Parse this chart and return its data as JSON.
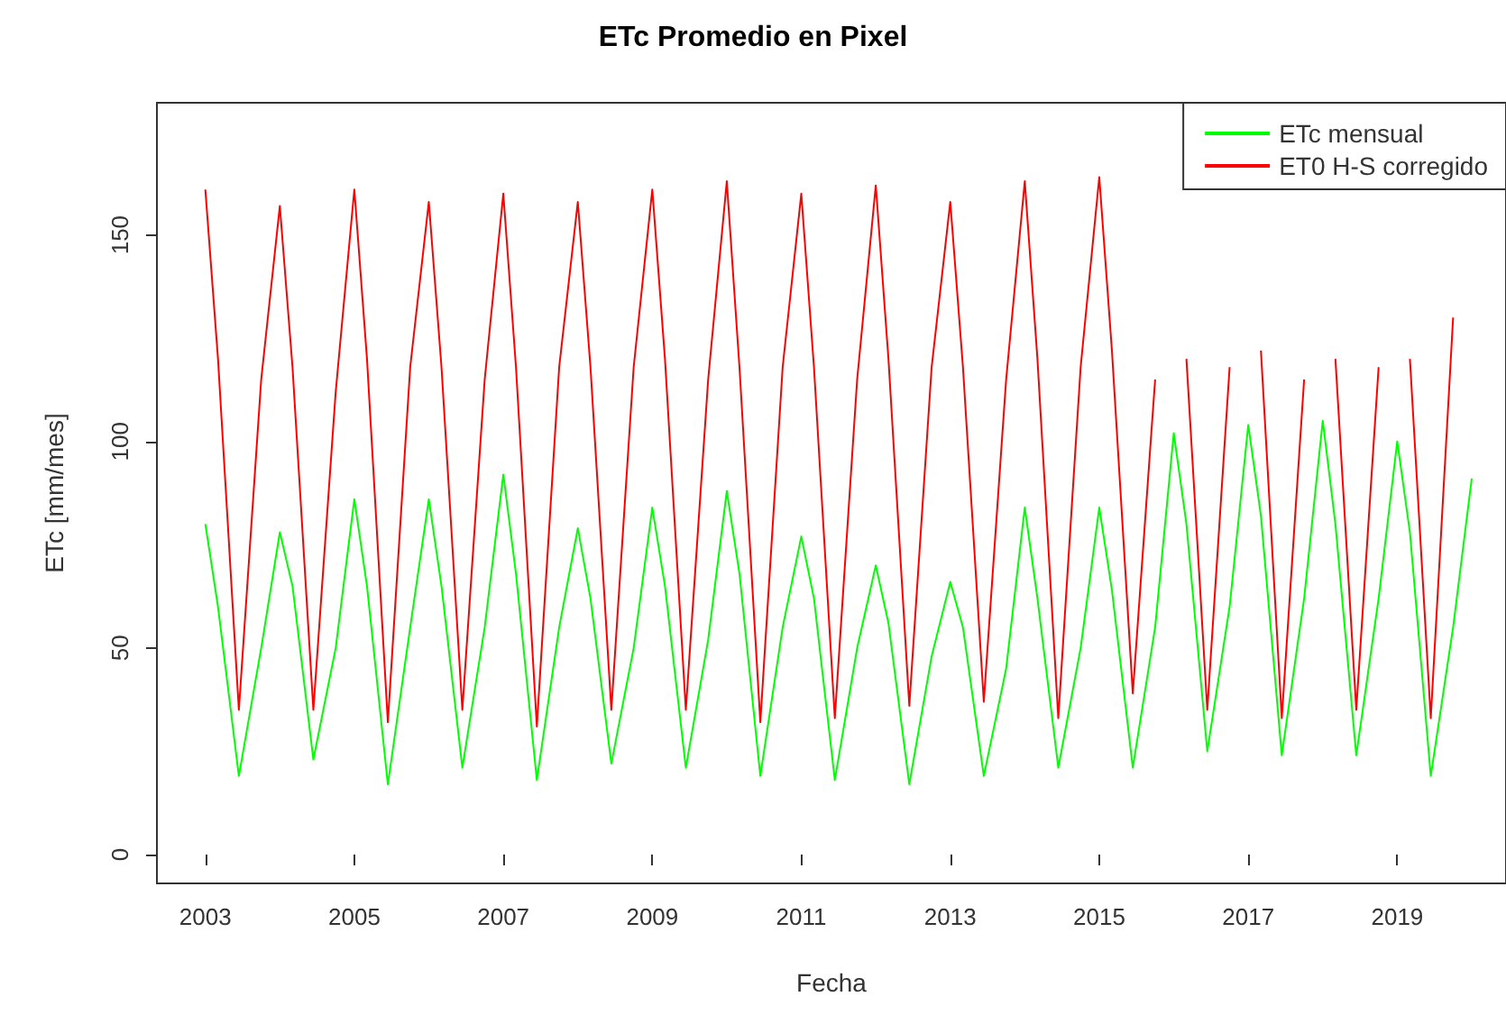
{
  "chart_data": {
    "type": "line",
    "title": "ETc Promedio en Pixel",
    "xlabel": "Fecha",
    "ylabel": "ETc [mm/mes]",
    "x": [
      2003,
      2003.17,
      2003.45,
      2003.75,
      2004,
      2004.17,
      2004.45,
      2004.75,
      2005,
      2005.17,
      2005.45,
      2005.75,
      2006,
      2006.17,
      2006.45,
      2006.75,
      2007,
      2007.17,
      2007.45,
      2007.75,
      2008,
      2008.17,
      2008.45,
      2008.75,
      2009,
      2009.17,
      2009.45,
      2009.75,
      2010,
      2010.17,
      2010.45,
      2010.75,
      2011,
      2011.17,
      2011.45,
      2011.75,
      2012,
      2012.17,
      2012.45,
      2012.75,
      2013,
      2013.17,
      2013.45,
      2013.75,
      2014,
      2014.17,
      2014.45,
      2014.75,
      2015,
      2015.17,
      2015.45,
      2015.75,
      2016,
      2016.17,
      2016.45,
      2016.75,
      2017,
      2017.17,
      2017.45,
      2017.75,
      2018,
      2018.17,
      2018.45,
      2018.75,
      2019,
      2019.17,
      2019.45,
      2019.75,
      2020
    ],
    "series": [
      {
        "name": "ETc mensual",
        "color": "#00ff00",
        "values": [
          80,
          60,
          19,
          50,
          78,
          65,
          23,
          50,
          86,
          65,
          17,
          55,
          86,
          65,
          21,
          55,
          92,
          68,
          18,
          55,
          79,
          62,
          22,
          50,
          84,
          65,
          21,
          52,
          88,
          68,
          19,
          55,
          77,
          62,
          18,
          50,
          70,
          56,
          17,
          48,
          66,
          55,
          19,
          45,
          84,
          62,
          21,
          50,
          84,
          64,
          21,
          55,
          102,
          80,
          25,
          60,
          104,
          82,
          24,
          62,
          105,
          80,
          24,
          62,
          100,
          78,
          19,
          55,
          91
        ]
      },
      {
        "name": "ET0 H-S corregido",
        "color": "#ff0000",
        "values": [
          161,
          120,
          35,
          115,
          157,
          118,
          35,
          112,
          161,
          120,
          32,
          118,
          158,
          118,
          35,
          115,
          160,
          118,
          31,
          118,
          158,
          118,
          35,
          118,
          161,
          120,
          35,
          115,
          163,
          118,
          32,
          118,
          160,
          118,
          33,
          115,
          162,
          120,
          36,
          118,
          158,
          118,
          37,
          115,
          163,
          120,
          33,
          118,
          164,
          122,
          39,
          115,
          null,
          120,
          35,
          118,
          null,
          122,
          33,
          115,
          null,
          120,
          35,
          118,
          null,
          120,
          33,
          130,
          null
        ]
      }
    ],
    "xlim": [
      2002.35,
      2020.46
    ],
    "xticks": [
      2003,
      2005,
      2007,
      2009,
      2011,
      2013,
      2015,
      2017,
      2019
    ],
    "ylim": [
      -7,
      182
    ],
    "yticks": [
      0,
      50,
      100,
      150
    ],
    "grid": false,
    "legend": "top right",
    "marker": "none",
    "line_style": "solid"
  }
}
